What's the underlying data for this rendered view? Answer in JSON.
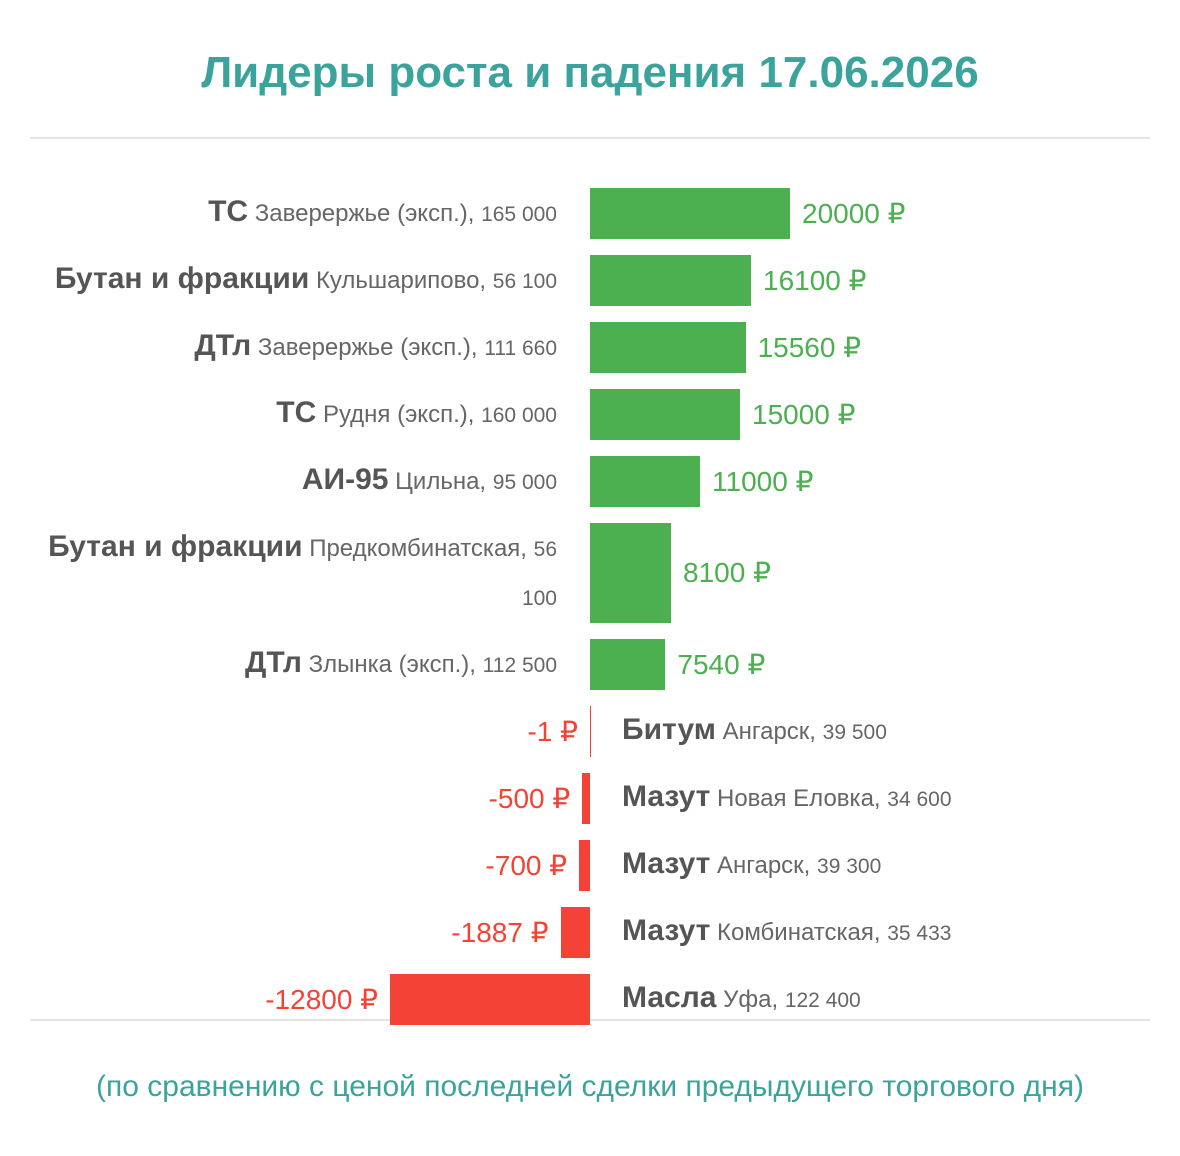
{
  "chart_data": {
    "type": "diverging-bar",
    "title": "Лидеры роста и падения 17.06.2026",
    "categories": [
      {
        "product": "ТС",
        "place": "Заверержье (эксп.),",
        "volume": "165 000"
      },
      {
        "product": "Бутан и фракции",
        "place": "Кульшарипово,",
        "volume": "56 100"
      },
      {
        "product": "ДТл",
        "place": "Заверержье (эксп.),",
        "volume": "111 660"
      },
      {
        "product": "ТС",
        "place": "Рудня (эксп.),",
        "volume": "160 000"
      },
      {
        "product": "АИ-95",
        "place": "Цильна,",
        "volume": "95 000"
      },
      {
        "product": "Бутан и фракции",
        "place": "Предкомбинатская,",
        "volume": "56 100"
      },
      {
        "product": "ДТл",
        "place": "Злынка (эксп.),",
        "volume": "112 500"
      },
      {
        "product": "Битум",
        "place": "Ангарск,",
        "volume": "39 500"
      },
      {
        "product": "Мазут",
        "place": "Новая Еловка,",
        "volume": "34 600"
      },
      {
        "product": "Мазут",
        "place": "Ангарск,",
        "volume": "39 300"
      },
      {
        "product": "Мазут",
        "place": "Комбинатская,",
        "volume": "35 433"
      },
      {
        "product": "Масла",
        "place": "Уфа,",
        "volume": "122 400"
      }
    ],
    "values": [
      20000,
      16100,
      15560,
      15000,
      11000,
      8100,
      7540,
      -1,
      -500,
      -700,
      -1887,
      -12800
    ],
    "value_labels": [
      "20000 ₽",
      "16100 ₽",
      "15560 ₽",
      "15000 ₽",
      "11000 ₽",
      "8100 ₽",
      "7540 ₽",
      "-1 ₽",
      "-500 ₽",
      "-700 ₽",
      "-1887 ₽",
      "-12800 ₽"
    ],
    "colors": {
      "positive": "#4caf50",
      "negative": "#f44336"
    },
    "note": "(по сравнению с ценой последней сделки предыдущего торгового дня)"
  }
}
